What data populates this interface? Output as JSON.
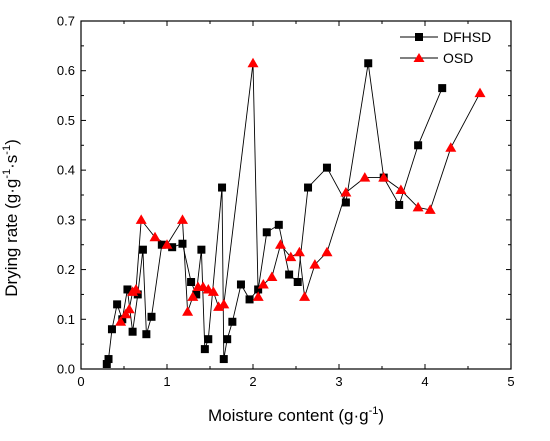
{
  "chart_data": {
    "type": "scatter",
    "xlabel": "Moisture content (g·g",
    "xlabel_sup": "-1",
    "xlabel_end": ")",
    "ylabel": "Drying rate (g·g",
    "ylabel_sup1": "-1",
    "ylabel_mid": "·s",
    "ylabel_sup2": "-1",
    "ylabel_end": ")",
    "xlim": [
      0,
      5
    ],
    "ylim": [
      0,
      0.7
    ],
    "xticks": [
      "0",
      "1",
      "2",
      "3",
      "4",
      "5"
    ],
    "yticks": [
      "0.0",
      "0.1",
      "0.2",
      "0.3",
      "0.4",
      "0.5",
      "0.6",
      "0.7"
    ],
    "xtick_values": [
      0,
      1,
      2,
      3,
      4,
      5
    ],
    "ytick_values": [
      0,
      0.1,
      0.2,
      0.3,
      0.4,
      0.5,
      0.6,
      0.7
    ],
    "grid": false,
    "legend_position": "top-right",
    "series": [
      {
        "name": "DFHSD",
        "marker": "square",
        "color": "#000000",
        "x": [
          0.3,
          0.32,
          0.36,
          0.42,
          0.48,
          0.54,
          0.6,
          0.66,
          0.72,
          0.76,
          0.82,
          0.94,
          1.06,
          1.18,
          1.28,
          1.34,
          1.4,
          1.44,
          1.48,
          1.64,
          1.66,
          1.7,
          1.76,
          1.86,
          1.96,
          2.06,
          2.16,
          2.3,
          2.42,
          2.52,
          2.64,
          2.86,
          3.08,
          3.34,
          3.52,
          3.7,
          3.92,
          4.2
        ],
        "y": [
          0.01,
          0.02,
          0.08,
          0.13,
          0.1,
          0.16,
          0.075,
          0.15,
          0.24,
          0.07,
          0.105,
          0.25,
          0.245,
          0.252,
          0.175,
          0.15,
          0.24,
          0.04,
          0.06,
          0.365,
          0.02,
          0.06,
          0.095,
          0.17,
          0.14,
          0.16,
          0.275,
          0.29,
          0.19,
          0.175,
          0.365,
          0.405,
          0.335,
          0.615,
          0.385,
          0.33,
          0.45,
          0.565
        ]
      },
      {
        "name": "OSD",
        "marker": "triangle",
        "color": "#ff0000",
        "x": [
          0.46,
          0.52,
          0.56,
          0.6,
          0.64,
          0.7,
          0.86,
          1.0,
          1.18,
          1.24,
          1.3,
          1.36,
          1.42,
          1.48,
          1.54,
          1.6,
          1.66,
          2.0,
          2.06,
          2.12,
          2.22,
          2.32,
          2.44,
          2.54,
          2.6,
          2.72,
          2.86,
          3.08,
          3.3,
          3.52,
          3.72,
          3.92,
          4.06,
          4.3,
          4.64
        ],
        "y": [
          0.095,
          0.11,
          0.12,
          0.155,
          0.16,
          0.3,
          0.265,
          0.25,
          0.3,
          0.115,
          0.145,
          0.165,
          0.165,
          0.16,
          0.155,
          0.125,
          0.13,
          0.615,
          0.145,
          0.17,
          0.185,
          0.25,
          0.225,
          0.235,
          0.145,
          0.21,
          0.235,
          0.355,
          0.385,
          0.385,
          0.36,
          0.325,
          0.32,
          0.445,
          0.555
        ]
      }
    ]
  }
}
